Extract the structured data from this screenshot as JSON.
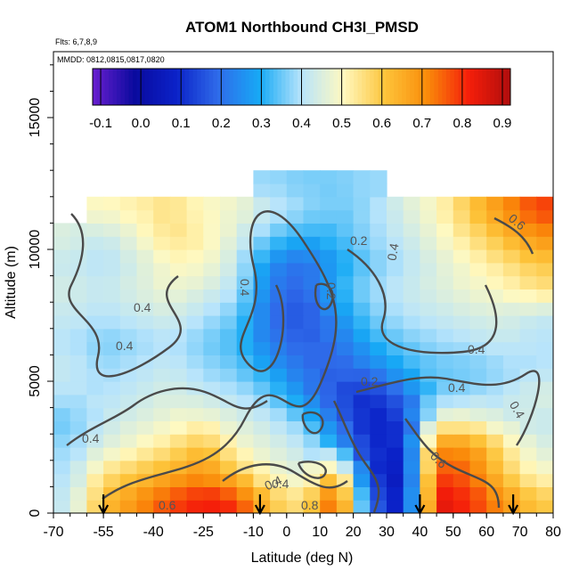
{
  "chart_data": {
    "type": "heatmap",
    "title": "ATOM1 Northbound CH3I_PMSD",
    "annotations": [
      "Flts: 6,7,8,9",
      "MMDD: 0812,0815,0817,0820"
    ],
    "xlabel": "Latitude (deg N)",
    "ylabel": "Altitude (m)",
    "xlim": [
      -70,
      80
    ],
    "ylim": [
      0,
      17500
    ],
    "x_ticks": [
      -70,
      -55,
      -40,
      -25,
      -10,
      0,
      10,
      20,
      30,
      40,
      50,
      60,
      70,
      80
    ],
    "x_tick_labels": [
      "-70",
      "-55",
      "-40",
      "-25",
      "-10",
      "0",
      "10",
      "20",
      "30",
      "40",
      "50",
      "60",
      "70",
      "80"
    ],
    "y_ticks": [
      0,
      5000,
      10000,
      15000
    ],
    "y_tick_labels": [
      "0",
      "5000",
      "10000",
      "15000"
    ],
    "colorbar": {
      "range": [
        -0.12,
        0.92
      ],
      "ticks": [
        -0.1,
        0.0,
        0.1,
        0.2,
        0.3,
        0.4,
        0.5,
        0.6,
        0.7,
        0.8,
        0.9
      ],
      "tick_labels": [
        "-0.1",
        "0.0",
        "0.1",
        "0.2",
        "0.3",
        "0.4",
        "0.5",
        "0.6",
        "0.7",
        "0.8",
        "0.9"
      ],
      "colors": [
        "#6a1fd0",
        "#0a0a9e",
        "#0b22c8",
        "#2f6bea",
        "#17aaf5",
        "#b8e4fb",
        "#fff9c0",
        "#fdc43a",
        "#fa8c0a",
        "#f51e0a",
        "#b00d0d"
      ]
    },
    "grid": {
      "x": [
        -65,
        -55,
        -45,
        -35,
        -25,
        -15,
        -5,
        5,
        15,
        25,
        35,
        45,
        55,
        65,
        75
      ],
      "y": [
        500,
        1500,
        2500,
        3500,
        4500,
        5500,
        6500,
        7500,
        8500,
        9500,
        10500,
        11500,
        12500
      ],
      "z": [
        [
          0.42,
          0.62,
          0.7,
          0.78,
          0.82,
          0.8,
          0.6,
          0.55,
          0.78,
          0.2,
          0.05,
          0.85,
          0.8,
          0.7,
          0.6
        ],
        [
          0.4,
          0.55,
          0.6,
          0.65,
          0.7,
          0.6,
          0.5,
          0.45,
          0.62,
          0.12,
          0.05,
          0.78,
          0.75,
          0.6,
          0.5
        ],
        [
          0.38,
          0.45,
          0.5,
          0.55,
          0.62,
          0.5,
          0.45,
          0.42,
          0.3,
          0.1,
          0.1,
          0.7,
          0.7,
          0.55,
          0.45
        ],
        [
          0.35,
          0.42,
          0.45,
          0.48,
          0.5,
          0.45,
          0.42,
          0.35,
          0.2,
          0.08,
          0.12,
          0.5,
          0.5,
          0.45,
          0.42
        ],
        [
          0.4,
          0.4,
          0.42,
          0.45,
          0.42,
          0.4,
          0.35,
          0.25,
          0.15,
          0.1,
          0.2,
          0.35,
          0.38,
          0.4,
          0.45
        ],
        [
          0.42,
          0.38,
          0.4,
          0.42,
          0.38,
          0.35,
          0.28,
          0.2,
          0.18,
          0.22,
          0.3,
          0.35,
          0.35,
          0.38,
          0.4
        ],
        [
          0.4,
          0.36,
          0.38,
          0.4,
          0.36,
          0.32,
          0.22,
          0.18,
          0.2,
          0.3,
          0.35,
          0.38,
          0.4,
          0.42,
          0.4
        ],
        [
          0.42,
          0.4,
          0.42,
          0.44,
          0.4,
          0.35,
          0.2,
          0.15,
          0.25,
          0.35,
          0.4,
          0.42,
          0.44,
          0.45,
          0.42
        ],
        [
          0.44,
          0.42,
          0.45,
          0.48,
          0.45,
          0.4,
          0.22,
          0.18,
          0.3,
          0.38,
          0.42,
          0.45,
          0.48,
          0.5,
          0.55
        ],
        [
          0.42,
          0.4,
          0.44,
          0.5,
          0.5,
          0.42,
          0.25,
          0.2,
          0.28,
          0.35,
          0.4,
          0.45,
          0.5,
          0.55,
          0.6
        ],
        [
          0.45,
          0.42,
          0.48,
          0.55,
          0.52,
          0.45,
          0.35,
          0.3,
          0.32,
          0.38,
          0.42,
          0.48,
          0.55,
          0.62,
          0.7
        ],
        [
          null,
          0.5,
          0.52,
          0.55,
          0.5,
          0.48,
          0.42,
          0.38,
          0.35,
          0.38,
          0.45,
          0.5,
          0.6,
          0.7,
          0.78
        ],
        [
          null,
          null,
          null,
          null,
          null,
          null,
          0.38,
          0.36,
          0.36,
          0.38,
          null,
          null,
          null,
          null,
          null
        ]
      ]
    },
    "contour_labels": [
      "0.6",
      "0.4",
      "0.8",
      "0.2",
      "0.4",
      "0.2",
      "0.4",
      "0.4",
      "0.4",
      "0.4",
      "0.4",
      "0.2",
      "0.4",
      "0.4",
      "0.6",
      "0.4",
      "0.6"
    ],
    "flight_markers_lat": [
      -55,
      -8,
      40,
      68
    ]
  }
}
